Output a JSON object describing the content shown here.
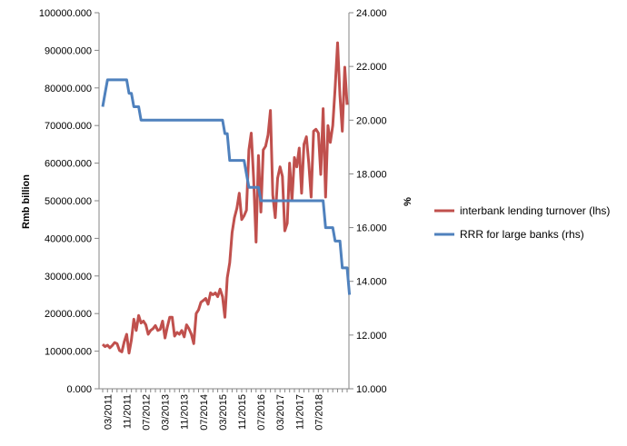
{
  "chart_data": {
    "type": "line",
    "title": "",
    "ylabel_left": "Rmb billion",
    "ylabel_right": "%",
    "ylim_left": [
      0,
      100000
    ],
    "ylim_right": [
      10,
      24
    ],
    "yticks_left": [
      "0.000",
      "10000.000",
      "20000.000",
      "30000.000",
      "40000.000",
      "50000.000",
      "60000.000",
      "70000.000",
      "80000.000",
      "90000.000",
      "100000.000"
    ],
    "yticks_right": [
      "10.000",
      "12.000",
      "14.000",
      "16.000",
      "18.000",
      "20.000",
      "22.000",
      "24.000"
    ],
    "xticks": [
      "03/2011",
      "11/2011",
      "07/2012",
      "03/2013",
      "11/2013",
      "07/2014",
      "03/2015",
      "11/2015",
      "07/2016",
      "03/2017",
      "11/2017",
      "07/2018"
    ],
    "grid": false,
    "legend_position": "right",
    "x_start": "01/2011",
    "series": [
      {
        "name": "interbank lending turnover (lhs)",
        "axis": "left",
        "color": "#c0504d",
        "values": [
          11800,
          11200,
          11600,
          10900,
          11500,
          12300,
          12000,
          10200,
          9800,
          12500,
          14500,
          9500,
          13000,
          18500,
          15500,
          19500,
          17500,
          18000,
          17000,
          14500,
          15500,
          16000,
          16800,
          15500,
          15800,
          18000,
          13500,
          16500,
          19000,
          19000,
          14000,
          15000,
          14500,
          15500,
          13800,
          17000,
          16000,
          14500,
          12000,
          20000,
          21000,
          23000,
          23500,
          24000,
          22500,
          25500,
          25000,
          25500,
          24500,
          26500,
          24500,
          19000,
          29500,
          33500,
          41500,
          45500,
          48000,
          52000,
          45000,
          46000,
          47500,
          63500,
          68000,
          56000,
          39000,
          62000,
          47000,
          63500,
          64500,
          67500,
          74000,
          51500,
          45500,
          56000,
          59000,
          56500,
          42000,
          44000,
          60000,
          50000,
          61500,
          59000,
          64000,
          52000,
          65000,
          67000,
          60000,
          51000,
          68500,
          69000,
          68000,
          57000,
          74500,
          51000,
          70000,
          65500,
          70000,
          80000,
          92000,
          78000,
          68500,
          85500,
          75500
        ],
        "x_offset_months": 0
      },
      {
        "name": "RRR for large banks (rhs)",
        "axis": "right",
        "color": "#4f81bd",
        "values": [
          20.5,
          21.0,
          21.5,
          21.5,
          21.5,
          21.5,
          21.5,
          21.5,
          21.5,
          21.5,
          21.5,
          21.0,
          21.0,
          20.5,
          20.5,
          20.5,
          20.0,
          20.0,
          20.0,
          20.0,
          20.0,
          20.0,
          20.0,
          20.0,
          20.0,
          20.0,
          20.0,
          20.0,
          20.0,
          20.0,
          20.0,
          20.0,
          20.0,
          20.0,
          20.0,
          20.0,
          20.0,
          20.0,
          20.0,
          20.0,
          20.0,
          20.0,
          20.0,
          20.0,
          20.0,
          20.0,
          20.0,
          20.0,
          20.0,
          20.0,
          20.0,
          19.5,
          19.5,
          18.5,
          18.5,
          18.5,
          18.5,
          18.5,
          18.5,
          18.5,
          18.0,
          17.5,
          17.5,
          17.5,
          17.5,
          17.5,
          17.0,
          17.0,
          17.0,
          17.0,
          17.0,
          17.0,
          17.0,
          17.0,
          17.0,
          17.0,
          17.0,
          17.0,
          17.0,
          17.0,
          17.0,
          17.0,
          17.0,
          17.0,
          17.0,
          17.0,
          17.0,
          17.0,
          17.0,
          17.0,
          17.0,
          17.0,
          17.0,
          16.0,
          16.0,
          16.0,
          16.0,
          15.5,
          15.5,
          15.5,
          14.5,
          14.5,
          14.5,
          13.5
        ],
        "x_offset_months": 0
      }
    ]
  }
}
